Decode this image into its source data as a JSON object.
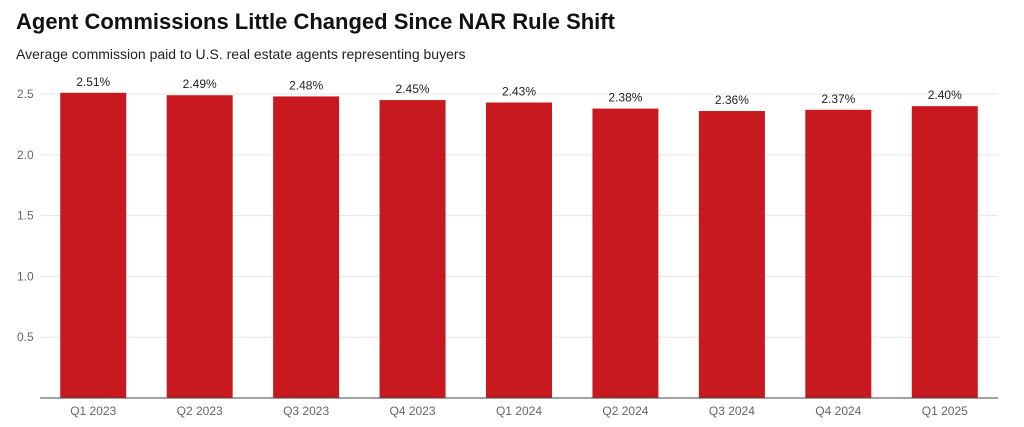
{
  "header": {
    "title": "Agent Commissions Little Changed Since NAR Rule Shift",
    "subtitle": "Average commission paid to U.S. real estate agents representing buyers"
  },
  "colors": {
    "bar": "#c8191e",
    "grid": "#e6e6e6",
    "axis": "#444444"
  },
  "chart_data": {
    "type": "bar",
    "title": "Agent Commissions Little Changed Since NAR Rule Shift",
    "subtitle": "Average commission paid to U.S. real estate agents representing buyers",
    "categories": [
      "Q1 2023",
      "Q2 2023",
      "Q3 2023",
      "Q4 2023",
      "Q1 2024",
      "Q2 2024",
      "Q3 2024",
      "Q4 2024",
      "Q1 2025"
    ],
    "values": [
      2.51,
      2.49,
      2.48,
      2.45,
      2.43,
      2.38,
      2.36,
      2.37,
      2.4
    ],
    "data_labels": [
      "2.51%",
      "2.49%",
      "2.48%",
      "2.45%",
      "2.43%",
      "2.38%",
      "2.36%",
      "2.37%",
      "2.40%"
    ],
    "ylim": [
      0,
      2.5
    ],
    "yticks": [
      0.5,
      1.0,
      1.5,
      2.0,
      2.5
    ],
    "ytick_labels": [
      "0.5",
      "1.0",
      "1.5",
      "2.0",
      "2.5"
    ],
    "xlabel": "",
    "ylabel": "",
    "grid": true,
    "legend": "none"
  }
}
